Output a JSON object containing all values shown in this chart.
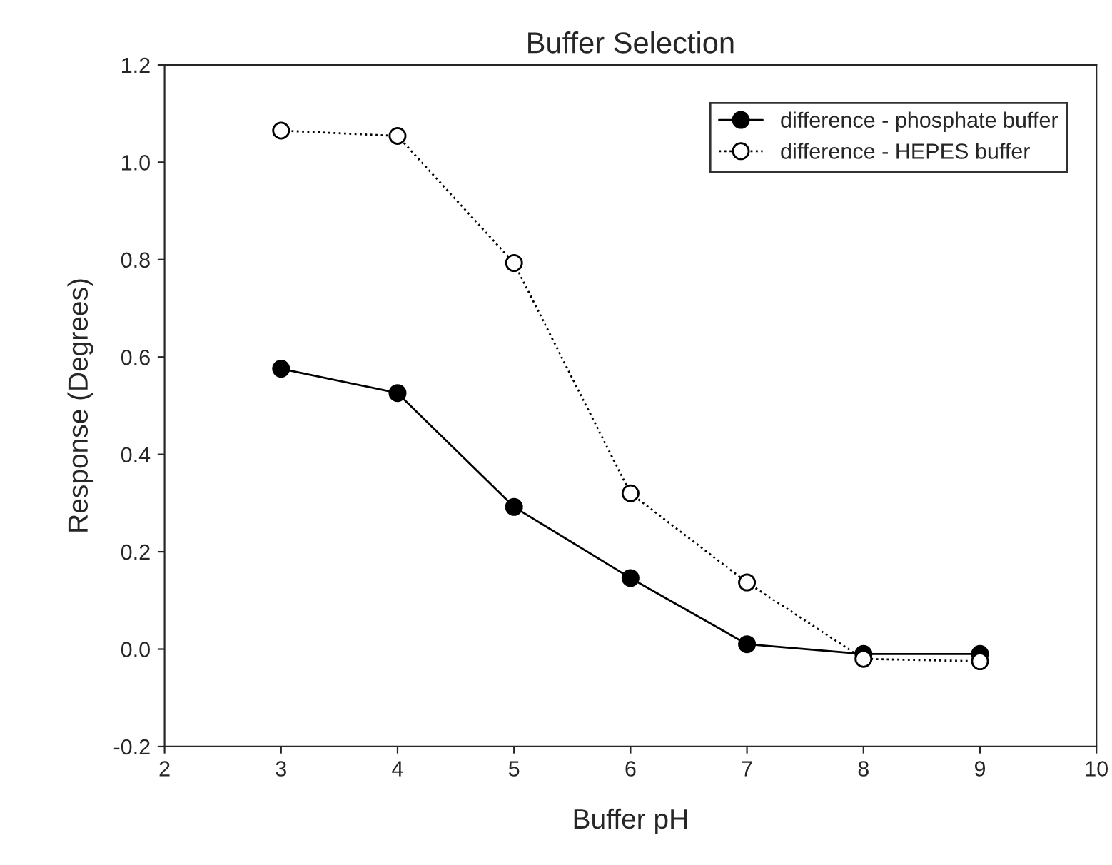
{
  "chart_data": {
    "type": "line",
    "title": "Buffer Selection",
    "xlabel": "Buffer pH",
    "ylabel": "Response (Degrees)",
    "x": [
      3,
      4,
      5,
      6,
      7,
      8,
      9
    ],
    "series": [
      {
        "name": "difference - phosphate buffer",
        "color": "#000000",
        "values": [
          0.576,
          0.526,
          0.292,
          0.146,
          0.01,
          -0.01,
          -0.01
        ],
        "marker": "circle",
        "line_style": "solid"
      },
      {
        "name": "difference - HEPES buffer",
        "color": "#000000",
        "values": [
          1.065,
          1.054,
          0.793,
          0.32,
          0.137,
          -0.02,
          -0.025
        ],
        "marker": "circle",
        "line_style": "dotted"
      }
    ],
    "xlim": [
      2,
      10
    ],
    "xticks": [
      2,
      3,
      4,
      5,
      6,
      7,
      8,
      9,
      10
    ],
    "ylim": [
      -0.2,
      1.2
    ],
    "yticks": [
      {
        "value": -0.2,
        "label": "-0.2"
      },
      {
        "value": 0.0,
        "label": "0.0"
      },
      {
        "value": 0.2,
        "label": "0.2"
      },
      {
        "value": 0.4,
        "label": "0.4"
      },
      {
        "value": 0.6,
        "label": "0.6"
      },
      {
        "value": 0.8,
        "label": "0.8"
      },
      {
        "value": 1.0,
        "label": "1.0"
      },
      {
        "value": 1.2,
        "label": "1.2"
      }
    ],
    "grid": false,
    "legend": "top right"
  }
}
